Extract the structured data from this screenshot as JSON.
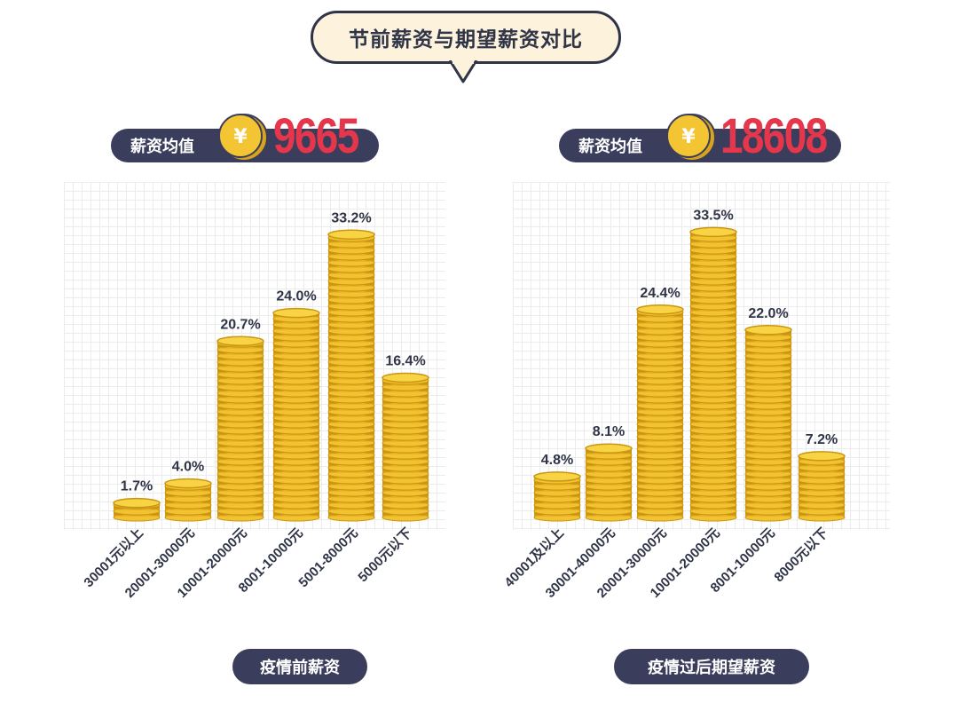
{
  "title": "节前薪资与期望薪资对比",
  "colors": {
    "dark": "#3a3e5c",
    "red": "#e5364b",
    "coin": "#f2c230",
    "coin_edge": "#c99512"
  },
  "chart_data": [
    {
      "type": "bar",
      "panel_label": "疫情前薪资",
      "average_label": "薪资均值",
      "average_value": "9665",
      "categories": [
        "30001元以上",
        "20001-30000元",
        "10001-20000元",
        "8001-10000元",
        "5001-8000元",
        "5000元以下"
      ],
      "values": [
        1.7,
        4.0,
        20.7,
        24.0,
        33.2,
        16.4
      ],
      "labels": [
        "1.7%",
        "4.0%",
        "20.7%",
        "24.0%",
        "33.2%",
        "16.4%"
      ]
    },
    {
      "type": "bar",
      "panel_label": "疫情过后期望薪资",
      "average_label": "薪资均值",
      "average_value": "18608",
      "categories": [
        "40001及以上",
        "30001-40000元",
        "20001-30000元",
        "10001-20000元",
        "8001-10000元",
        "8000元以下"
      ],
      "values": [
        4.8,
        8.1,
        24.4,
        33.5,
        22.0,
        7.2
      ],
      "labels": [
        "4.8%",
        "8.1%",
        "24.4%",
        "33.5%",
        "22.0%",
        "7.2%"
      ]
    }
  ]
}
